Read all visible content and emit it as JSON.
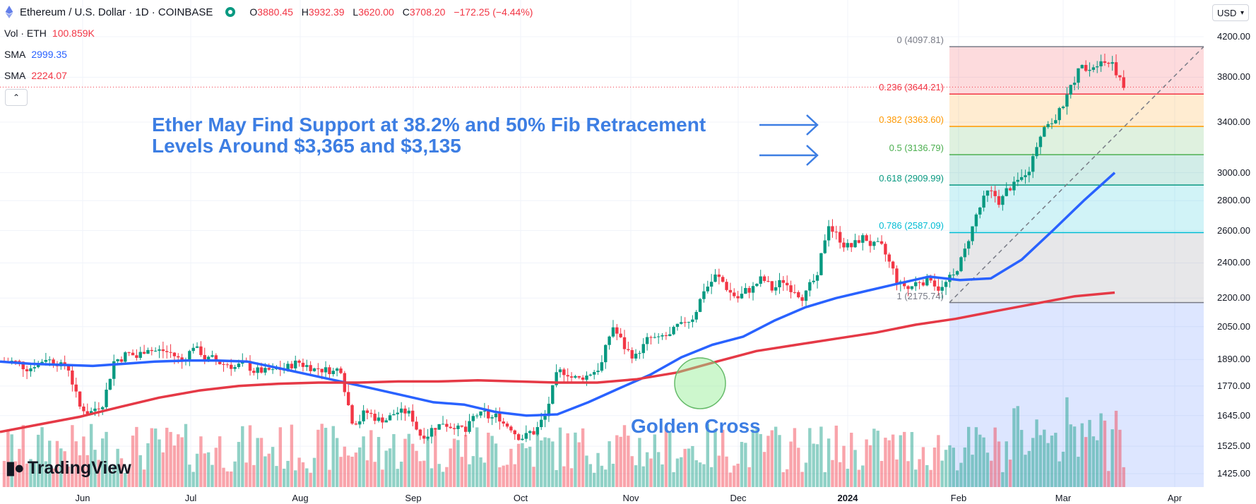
{
  "header": {
    "symbol": "Ethereum / U.S. Dollar · 1D · COINBASE",
    "open_label": "O",
    "open": "3880.45",
    "high_label": "H",
    "high": "3932.39",
    "low_label": "L",
    "low": "3620.00",
    "close_label": "C",
    "close": "3708.20",
    "change": "−172.25 (−4.44%)"
  },
  "indicators": {
    "vol_label": "Vol · ETH",
    "vol_value": "100.859K",
    "sma1_label": "SMA",
    "sma1_value": "2999.35",
    "sma2_label": "SMA",
    "sma2_value": "2224.07"
  },
  "currency": "USD",
  "colors": {
    "up": "#089981",
    "down": "#f23645",
    "sma_fast": "#2962ff",
    "sma_slow": "#e53946",
    "annotation": "#3d7ee3"
  },
  "annotation": {
    "line1": "Ether May Find Support at 38.2% and 50% Fib Retracement",
    "line2": "Levels Around $3,365 and $3,135",
    "golden_cross": "Golden Cross"
  },
  "logo_text": "TradingView",
  "price_axis": [
    "4200.00",
    "3800.00",
    "3400.00",
    "3000.00",
    "2800.00",
    "2600.00",
    "2400.00",
    "2200.00",
    "2050.00",
    "1890.00",
    "1770.00",
    "1645.00",
    "1525.00",
    "1425.00"
  ],
  "time_axis": [
    "Jun",
    "Jul",
    "Aug",
    "Sep",
    "Oct",
    "Nov",
    "Dec",
    "2024",
    "Feb",
    "Mar",
    "Apr"
  ],
  "fib_levels": [
    {
      "label": "0 (4097.81)",
      "price": 4097.81,
      "color": "#787b86"
    },
    {
      "label": "0.236 (3644.21)",
      "price": 3644.21,
      "color": "#f23645"
    },
    {
      "label": "0.382 (3363.60)",
      "price": 3363.6,
      "color": "#ff9800"
    },
    {
      "label": "0.5 (3136.79)",
      "price": 3136.79,
      "color": "#4caf50"
    },
    {
      "label": "0.618 (2909.99)",
      "price": 2909.99,
      "color": "#089981"
    },
    {
      "label": "0.786 (2587.09)",
      "price": 2587.09,
      "color": "#00bcd4"
    },
    {
      "label": "1 (2175.74)",
      "price": 2175.74,
      "color": "#787b86"
    }
  ],
  "chart_data": {
    "type": "candlestick",
    "series": [
      {
        "name": "Ethereum / U.S. Dollar",
        "close_path": [
          1880,
          1860,
          1870,
          1900,
          1880,
          1850,
          1680,
          1660,
          1700,
          1880,
          1910,
          1900,
          1950,
          1930,
          1920,
          1880,
          1960,
          1900,
          1880,
          1870,
          1860,
          1855,
          1840,
          1830,
          1845,
          1870,
          1860,
          1850,
          1845,
          1850,
          1630,
          1650,
          1640,
          1630,
          1660,
          1650,
          1570,
          1590,
          1620,
          1610,
          1580,
          1650,
          1640,
          1640,
          1600,
          1560,
          1580,
          1640,
          1810,
          1830,
          1800,
          1830,
          1870,
          2050,
          1950,
          1900,
          1980,
          1980,
          2000,
          2050,
          2100,
          2250,
          2320,
          2260,
          2200,
          2250,
          2300,
          2250,
          2300,
          2250,
          2220,
          2300,
          2650,
          2550,
          2500,
          2550,
          2500,
          2450,
          2300,
          2250,
          2300,
          2320,
          2250,
          2320,
          2470,
          2700,
          2850,
          2800,
          2900,
          2950,
          3100,
          3400,
          3430,
          3600,
          3850,
          3900,
          4000,
          3950,
          3700
        ]
      },
      {
        "name": "SMA",
        "values": [
          1880,
          1870,
          1865,
          1860,
          1870,
          1880,
          1885,
          1885,
          1880,
          1850,
          1820,
          1790,
          1760,
          1730,
          1700,
          1690,
          1660,
          1645,
          1650,
          1700,
          1760,
          1820,
          1900,
          1960,
          2000,
          2080,
          2150,
          2200,
          2240,
          2280,
          2320,
          2300,
          2310,
          2420,
          2600,
          2800,
          3000
        ]
      },
      {
        "name": "SMA",
        "values": [
          1580,
          1610,
          1640,
          1680,
          1720,
          1750,
          1770,
          1780,
          1785,
          1785,
          1790,
          1790,
          1795,
          1790,
          1785,
          1785,
          1800,
          1830,
          1880,
          1930,
          1960,
          1990,
          2020,
          2060,
          2090,
          2130,
          2170,
          2210,
          2230
        ]
      }
    ],
    "volume_max_label": "100.859K",
    "ylim": [
      1380,
      4260
    ],
    "log_scale": true,
    "grid": true
  }
}
